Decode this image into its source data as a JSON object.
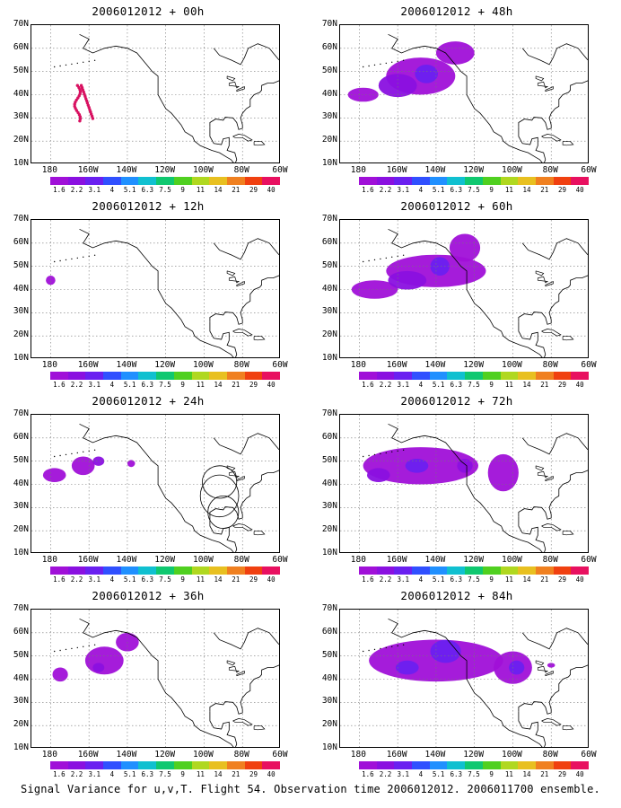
{
  "footer": "Signal Variance for u,v,T. Flight 54. Observation time 2006012012. 2006011700 ensemble.",
  "y_ticks": [
    "70N",
    "60N",
    "50N",
    "40N",
    "30N",
    "20N",
    "10N"
  ],
  "x_ticks": [
    "180",
    "160W",
    "140W",
    "120W",
    "100W",
    "80W",
    "60W"
  ],
  "colorbar": {
    "labels": [
      "1.6",
      "2.2",
      "3.1",
      "4",
      "5.1",
      "6.3",
      "7.5",
      "9",
      "11",
      "14",
      "21",
      "29",
      "40"
    ],
    "colors": [
      "#a010d8",
      "#8a10e0",
      "#6a20f0",
      "#3050ff",
      "#2090ff",
      "#10c0d0",
      "#10c870",
      "#50d020",
      "#b0d820",
      "#e8c020",
      "#f08020",
      "#f04010",
      "#e81060"
    ]
  },
  "panels": [
    {
      "title": "2006012012 + 00h"
    },
    {
      "title": "2006012012 + 48h"
    },
    {
      "title": "2006012012 + 12h"
    },
    {
      "title": "2006012012 + 60h"
    },
    {
      "title": "2006012012 + 24h"
    },
    {
      "title": "2006012012 + 72h"
    },
    {
      "title": "2006012012 + 36h"
    },
    {
      "title": "2006012012 + 84h"
    }
  ]
}
